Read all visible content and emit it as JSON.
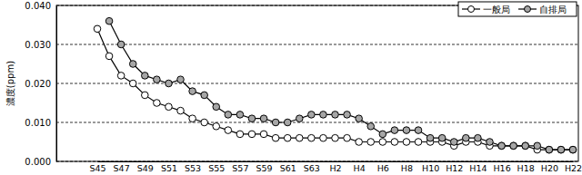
{
  "chart_data": {
    "type": "line",
    "y_label": "濃度(ppm)",
    "categories": [
      "S45",
      null,
      "S47",
      null,
      "S49",
      null,
      "S51",
      null,
      "S53",
      null,
      "S55",
      null,
      "S57",
      null,
      "S59",
      null,
      "S61",
      null,
      "S63",
      null,
      "H2",
      null,
      "H4",
      null,
      "H6",
      null,
      "H8",
      null,
      "H10",
      null,
      "H12",
      null,
      "H14",
      null,
      "H16",
      null,
      "H18",
      null,
      "H20",
      null,
      "H22"
    ],
    "series": [
      {
        "name": "一般局",
        "color": "#ffffff",
        "marker": "circle",
        "line_style": "solid",
        "values": [
          0.034,
          0.027,
          0.022,
          0.02,
          0.017,
          0.015,
          0.014,
          0.013,
          0.011,
          0.01,
          0.009,
          0.008,
          0.007,
          0.007,
          0.007,
          0.006,
          0.006,
          0.006,
          0.006,
          0.006,
          0.006,
          0.006,
          0.005,
          0.005,
          0.005,
          0.005,
          0.005,
          0.005,
          0.005,
          0.005,
          0.004,
          0.005,
          0.005,
          0.004,
          0.004,
          0.004,
          0.004,
          0.003,
          0.003,
          0.003,
          0.003
        ]
      },
      {
        "name": "自排局",
        "color": "#a6a6a6",
        "marker": "circle",
        "line_style": "solid",
        "values": [
          null,
          0.036,
          0.03,
          0.025,
          0.022,
          0.021,
          0.02,
          0.021,
          0.018,
          0.017,
          0.014,
          0.012,
          0.012,
          0.011,
          0.011,
          0.01,
          0.01,
          0.011,
          0.012,
          0.012,
          0.012,
          0.012,
          0.011,
          0.009,
          0.007,
          0.008,
          0.008,
          0.008,
          0.006,
          0.006,
          0.005,
          0.006,
          0.006,
          0.005,
          0.004,
          0.004,
          0.004,
          0.004,
          0.003,
          0.003,
          0.003
        ]
      }
    ],
    "ylim": [
      0,
      0.04
    ],
    "yticks": [
      {
        "value": 0,
        "label": "0.000"
      },
      {
        "value": 0.01,
        "label": "0.010"
      },
      {
        "value": 0.02,
        "label": "0.020"
      },
      {
        "value": 0.03,
        "label": "0.030"
      },
      {
        "value": 0.04,
        "label": "0.040"
      }
    ],
    "grid": true,
    "legend": "top-right"
  }
}
